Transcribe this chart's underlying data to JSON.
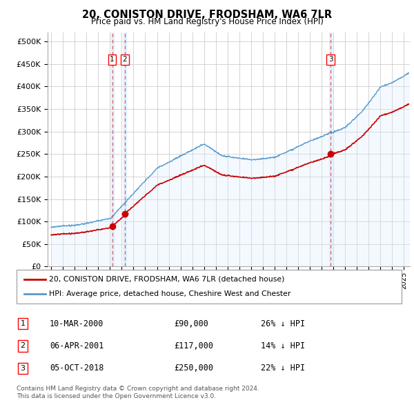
{
  "title": "20, CONISTON DRIVE, FRODSHAM, WA6 7LR",
  "subtitle": "Price paid vs. HM Land Registry's House Price Index (HPI)",
  "ylim": [
    0,
    520000
  ],
  "yticks": [
    0,
    50000,
    100000,
    150000,
    200000,
    250000,
    300000,
    350000,
    400000,
    450000,
    500000
  ],
  "xlim_start": 1994.7,
  "xlim_end": 2025.5,
  "background_color": "#ffffff",
  "grid_color": "#cccccc",
  "hpi_color": "#5599cc",
  "hpi_fill_color": "#ddeeff",
  "price_color": "#cc0000",
  "vline_color": "#dd4444",
  "sales": [
    {
      "num": 1,
      "date_label": "10-MAR-2000",
      "price": 90000,
      "pct": "26% ↓ HPI",
      "x": 2000.19
    },
    {
      "num": 2,
      "date_label": "06-APR-2001",
      "price": 117000,
      "pct": "14% ↓ HPI",
      "x": 2001.27
    },
    {
      "num": 3,
      "date_label": "05-OCT-2018",
      "price": 250000,
      "pct": "22% ↓ HPI",
      "x": 2018.76
    }
  ],
  "legend_line1": "20, CONISTON DRIVE, FRODSHAM, WA6 7LR (detached house)",
  "legend_line2": "HPI: Average price, detached house, Cheshire West and Chester",
  "footer1": "Contains HM Land Registry data © Crown copyright and database right 2024.",
  "footer2": "This data is licensed under the Open Government Licence v3.0."
}
